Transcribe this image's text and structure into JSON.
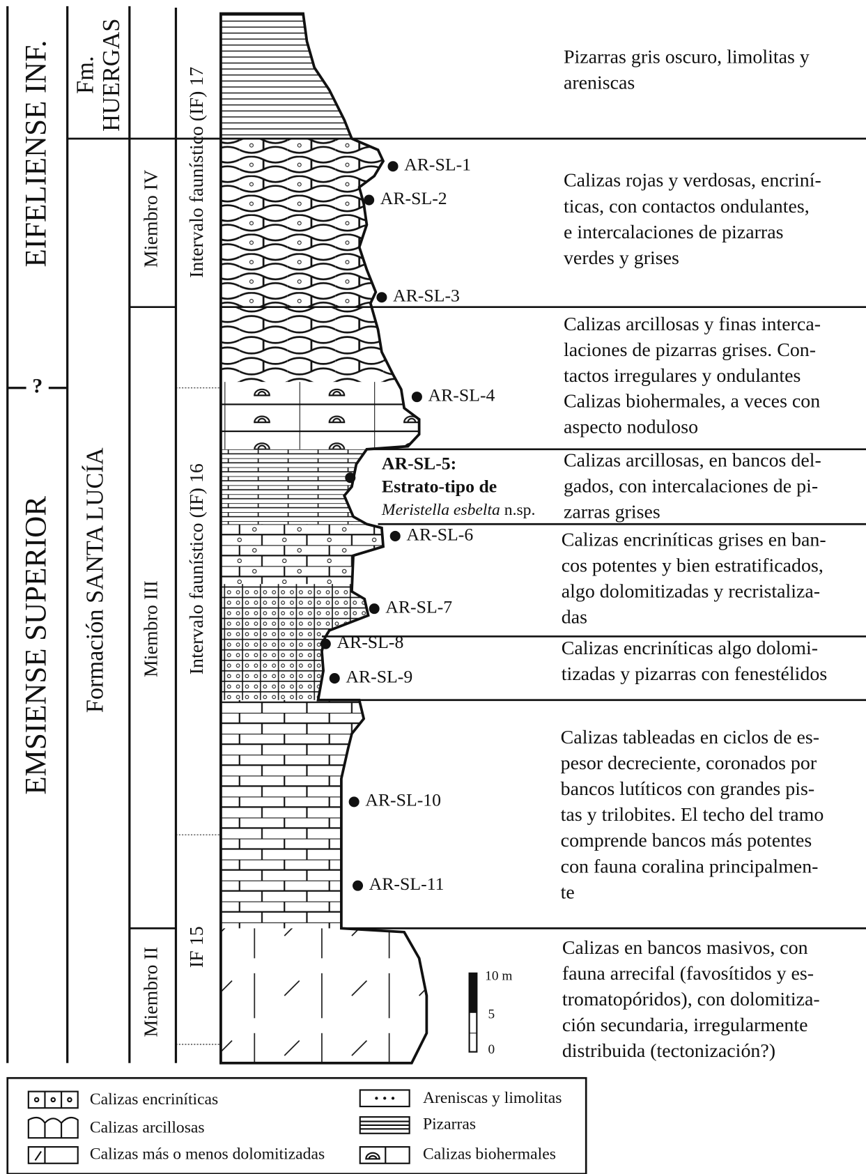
{
  "stages": {
    "upper": "EIFELIENSE INF.",
    "boundary": "?",
    "lower": "EMSIENSE SUPERIOR"
  },
  "formations": {
    "upper": [
      "Fm.",
      "HUERGAS"
    ],
    "lower": "Formación SANTA LUCÍA"
  },
  "members": [
    "Miembro IV",
    "Miembro III",
    "Miembro II"
  ],
  "intervals": [
    "Intervalo faunístico (IF) 17",
    "Intervalo faunístico (IF) 16",
    "IF 15"
  ],
  "samples": [
    "AR-SL-1",
    "AR-SL-2",
    "AR-SL-3",
    "AR-SL-4",
    "AR-SL-6",
    "AR-SL-7",
    "AR-SL-8",
    "AR-SL-9",
    "AR-SL-10",
    "AR-SL-11"
  ],
  "type_stratum": {
    "label": "AR-SL-5:",
    "line2": "Estrato-tipo de",
    "species": "Meristella esbelta",
    "suffix": "n.sp."
  },
  "descriptions": [
    [
      "Pizarras gris oscuro, limolitas y",
      "areniscas"
    ],
    [
      "Calizas rojas y verdosas, encriní-",
      "ticas, con contactos ondulantes,",
      "e intercalaciones de pizarras",
      "verdes y grises"
    ],
    [
      "Calizas arcillosas y finas interca-",
      "laciones de pizarras grises. Con-",
      "tactos irregulares y ondulantes"
    ],
    [
      "Calizas biohermales, a veces con",
      "aspecto noduloso"
    ],
    [
      "Calizas arcillosas, en bancos del-",
      "gados, con intercalaciones de pi-",
      "zarras grises"
    ],
    [
      "Calizas encriníticas grises en ban-",
      "cos potentes y bien estratificados,",
      "algo dolomitizadas y recristaliza-",
      "das"
    ],
    [
      "Calizas encriníticas algo dolomi-",
      "tizadas y pizarras con fenestélidos"
    ],
    [
      "Calizas tableadas en ciclos de es-",
      "pesor decreciente, coronados por",
      "bancos lutíticos con grandes pis-",
      "tas y trilobites. El techo del tramo",
      "comprende bancos más potentes",
      "con fauna coralina principalmen-",
      "te"
    ],
    [
      "Calizas en bancos masivos, con",
      "fauna arrecifal (favosítidos y es-",
      "tromatopóridos), con dolomitiza-",
      "ción secundaria, irregularmente",
      "distribuida (tectonización?)"
    ]
  ],
  "scale": [
    "10 m",
    "5",
    "0"
  ],
  "legend": [
    "Calizas encriníticas",
    "Calizas arcillosas",
    "Calizas más o menos dolomitizadas",
    "Areniscas y limolitas",
    "Pizarras",
    "Calizas biohermales"
  ]
}
